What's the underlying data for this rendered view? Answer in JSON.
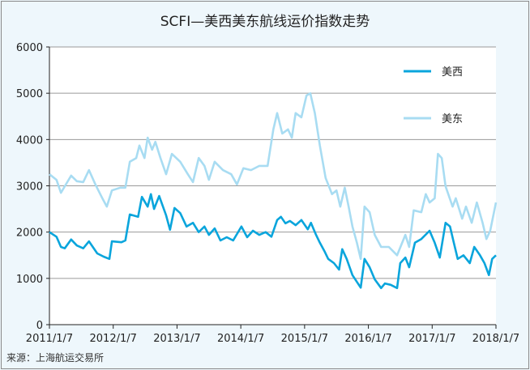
{
  "chart_data": {
    "type": "line",
    "title": "SCFI—美西美东航线运价指数走势",
    "source": "来源：上海航运交易所",
    "xlabel": "",
    "ylabel": "",
    "ylim": [
      0,
      6000
    ],
    "xlim": [
      2011.0,
      2018.0
    ],
    "yticks": [
      "0",
      "1000",
      "2000",
      "3000",
      "4000",
      "5000",
      "6000"
    ],
    "ytick_values": [
      0,
      1000,
      2000,
      3000,
      4000,
      5000,
      6000
    ],
    "xticks": [
      "2011/1/7",
      "2012/1/7",
      "2013/1/7",
      "2014/1/7",
      "2015/1/7",
      "2016/1/7",
      "2017/1/7",
      "2018/1/7"
    ],
    "xtick_values": [
      2011,
      2012,
      2013,
      2014,
      2015,
      2016,
      2017,
      2018
    ],
    "grid": true,
    "legend_position": "top-right",
    "series": [
      {
        "name": "美西",
        "color": "#0aa5dc",
        "points": [
          [
            2011.0,
            2000
          ],
          [
            2011.11,
            1900
          ],
          [
            2011.18,
            1680
          ],
          [
            2011.24,
            1650
          ],
          [
            2011.34,
            1840
          ],
          [
            2011.43,
            1710
          ],
          [
            2011.53,
            1650
          ],
          [
            2011.62,
            1800
          ],
          [
            2011.75,
            1540
          ],
          [
            2011.85,
            1470
          ],
          [
            2011.94,
            1420
          ],
          [
            2011.98,
            1800
          ],
          [
            2012.13,
            1780
          ],
          [
            2012.19,
            1820
          ],
          [
            2012.26,
            2380
          ],
          [
            2012.39,
            2330
          ],
          [
            2012.45,
            2760
          ],
          [
            2012.54,
            2550
          ],
          [
            2012.59,
            2820
          ],
          [
            2012.64,
            2500
          ],
          [
            2012.72,
            2780
          ],
          [
            2012.83,
            2360
          ],
          [
            2012.89,
            2050
          ],
          [
            2012.96,
            2520
          ],
          [
            2013.05,
            2410
          ],
          [
            2013.15,
            2120
          ],
          [
            2013.25,
            2200
          ],
          [
            2013.34,
            2000
          ],
          [
            2013.43,
            2120
          ],
          [
            2013.5,
            1940
          ],
          [
            2013.59,
            2080
          ],
          [
            2013.68,
            1820
          ],
          [
            2013.78,
            1890
          ],
          [
            2013.88,
            1820
          ],
          [
            2014.01,
            2120
          ],
          [
            2014.1,
            1890
          ],
          [
            2014.19,
            2030
          ],
          [
            2014.29,
            1940
          ],
          [
            2014.39,
            2000
          ],
          [
            2014.48,
            1900
          ],
          [
            2014.57,
            2260
          ],
          [
            2014.63,
            2330
          ],
          [
            2014.7,
            2190
          ],
          [
            2014.77,
            2240
          ],
          [
            2014.86,
            2150
          ],
          [
            2014.95,
            2260
          ],
          [
            2015.05,
            2060
          ],
          [
            2015.1,
            2200
          ],
          [
            2015.18,
            1940
          ],
          [
            2015.24,
            1770
          ],
          [
            2015.31,
            1590
          ],
          [
            2015.37,
            1420
          ],
          [
            2015.46,
            1330
          ],
          [
            2015.54,
            1190
          ],
          [
            2015.59,
            1630
          ],
          [
            2015.66,
            1420
          ],
          [
            2015.75,
            1070
          ],
          [
            2015.88,
            800
          ],
          [
            2015.94,
            1420
          ],
          [
            2016.02,
            1240
          ],
          [
            2016.1,
            980
          ],
          [
            2016.2,
            790
          ],
          [
            2016.26,
            890
          ],
          [
            2016.35,
            860
          ],
          [
            2016.45,
            790
          ],
          [
            2016.5,
            1330
          ],
          [
            2016.58,
            1450
          ],
          [
            2016.64,
            1240
          ],
          [
            2016.73,
            1770
          ],
          [
            2016.83,
            1850
          ],
          [
            2016.96,
            2030
          ],
          [
            2017.04,
            1770
          ],
          [
            2017.12,
            1450
          ],
          [
            2017.21,
            2200
          ],
          [
            2017.28,
            2120
          ],
          [
            2017.34,
            1770
          ],
          [
            2017.4,
            1420
          ],
          [
            2017.49,
            1500
          ],
          [
            2017.59,
            1330
          ],
          [
            2017.66,
            1680
          ],
          [
            2017.75,
            1500
          ],
          [
            2017.82,
            1330
          ],
          [
            2017.89,
            1070
          ],
          [
            2017.94,
            1420
          ],
          [
            2018.0,
            1500
          ]
        ]
      },
      {
        "name": "美东",
        "color": "#a8dcf2",
        "points": [
          [
            2011.0,
            3250
          ],
          [
            2011.11,
            3130
          ],
          [
            2011.18,
            2850
          ],
          [
            2011.27,
            3060
          ],
          [
            2011.34,
            3220
          ],
          [
            2011.43,
            3100
          ],
          [
            2011.53,
            3080
          ],
          [
            2011.62,
            3340
          ],
          [
            2011.72,
            3030
          ],
          [
            2011.83,
            2730
          ],
          [
            2011.9,
            2550
          ],
          [
            2011.98,
            2900
          ],
          [
            2012.11,
            2960
          ],
          [
            2012.19,
            2960
          ],
          [
            2012.26,
            3520
          ],
          [
            2012.36,
            3600
          ],
          [
            2012.41,
            3870
          ],
          [
            2012.49,
            3600
          ],
          [
            2012.54,
            4040
          ],
          [
            2012.61,
            3780
          ],
          [
            2012.66,
            3950
          ],
          [
            2012.74,
            3600
          ],
          [
            2012.83,
            3250
          ],
          [
            2012.92,
            3690
          ],
          [
            2013.05,
            3520
          ],
          [
            2013.17,
            3250
          ],
          [
            2013.25,
            3080
          ],
          [
            2013.34,
            3600
          ],
          [
            2013.43,
            3430
          ],
          [
            2013.5,
            3130
          ],
          [
            2013.59,
            3520
          ],
          [
            2013.72,
            3340
          ],
          [
            2013.85,
            3250
          ],
          [
            2013.94,
            3030
          ],
          [
            2014.04,
            3380
          ],
          [
            2014.16,
            3340
          ],
          [
            2014.29,
            3430
          ],
          [
            2014.42,
            3430
          ],
          [
            2014.51,
            4220
          ],
          [
            2014.57,
            4570
          ],
          [
            2014.65,
            4130
          ],
          [
            2014.74,
            4220
          ],
          [
            2014.8,
            4040
          ],
          [
            2014.86,
            4570
          ],
          [
            2014.95,
            4480
          ],
          [
            2015.03,
            4950
          ],
          [
            2015.09,
            5000
          ],
          [
            2015.16,
            4570
          ],
          [
            2015.24,
            3870
          ],
          [
            2015.33,
            3170
          ],
          [
            2015.43,
            2820
          ],
          [
            2015.5,
            2900
          ],
          [
            2015.56,
            2550
          ],
          [
            2015.63,
            2960
          ],
          [
            2015.69,
            2550
          ],
          [
            2015.75,
            2120
          ],
          [
            2015.82,
            1770
          ],
          [
            2015.88,
            1420
          ],
          [
            2015.94,
            2550
          ],
          [
            2016.02,
            2430
          ],
          [
            2016.1,
            1940
          ],
          [
            2016.2,
            1680
          ],
          [
            2016.32,
            1680
          ],
          [
            2016.45,
            1500
          ],
          [
            2016.58,
            1940
          ],
          [
            2016.64,
            1680
          ],
          [
            2016.71,
            2470
          ],
          [
            2016.83,
            2430
          ],
          [
            2016.9,
            2820
          ],
          [
            2016.96,
            2640
          ],
          [
            2017.04,
            2730
          ],
          [
            2017.09,
            3690
          ],
          [
            2017.15,
            3600
          ],
          [
            2017.21,
            2990
          ],
          [
            2017.32,
            2550
          ],
          [
            2017.37,
            2730
          ],
          [
            2017.47,
            2290
          ],
          [
            2017.53,
            2550
          ],
          [
            2017.62,
            2200
          ],
          [
            2017.7,
            2640
          ],
          [
            2017.79,
            2200
          ],
          [
            2017.85,
            1850
          ],
          [
            2017.91,
            2030
          ],
          [
            2018.0,
            2640
          ]
        ]
      }
    ]
  }
}
